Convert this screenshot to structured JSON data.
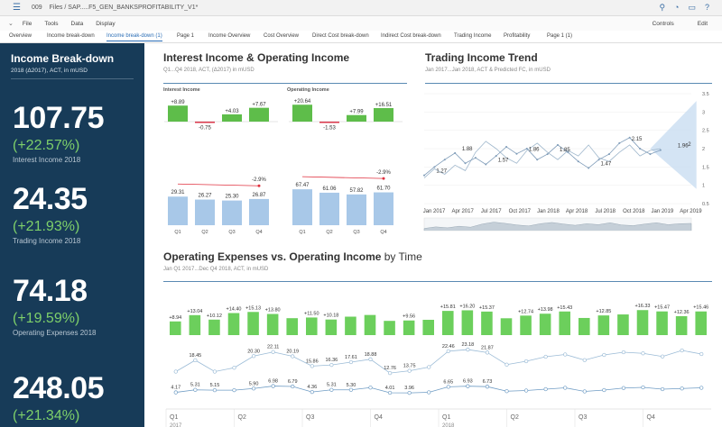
{
  "topbar": {
    "menu_icon": "hamburger-icon",
    "number": "009",
    "path": "Files  /  SAP.....F5_GEN_BANKSPROFITABILITY_V1*"
  },
  "menubar": {
    "items": [
      "File",
      "Tools",
      "Data",
      "Display"
    ],
    "controls": "Controls",
    "edit": "Edit"
  },
  "tabs": [
    "Overview",
    "Income break-down",
    "Income break-down (1)",
    "Page 1",
    "Income Overview",
    "Cost Overview",
    "Direct Cost break-down",
    "Indirect Cost break-down",
    "Trading Income",
    "Profitability",
    "Page 1 (1)"
  ],
  "active_tab": "Income break-down (1)",
  "sidebar": {
    "title": "Income Break-down",
    "subtitle": "2018 (Δ2017), ACT, in mUSD",
    "kpis": [
      {
        "value": "107.75",
        "pct": "(+22.57%)",
        "label": "Interest Income 2018"
      },
      {
        "value": "24.35",
        "pct": "(+21.93%)",
        "label": "Trading Income 2018"
      },
      {
        "value": "74.18",
        "pct": "(+19.59%)",
        "label": "Operating Expenses 2018"
      },
      {
        "value": "248.05",
        "pct": "(+21.34%)",
        "label": ""
      }
    ]
  },
  "panel1": {
    "title": "Interest Income & Operating Income",
    "subtitle": "Q1...Q4 2018, ACT, (Δ2017) in mUSD",
    "left_label": "Interest Income",
    "right_label": "Operating Income"
  },
  "panel2": {
    "title": "Trading Income Trend",
    "subtitle": "Jan 2017...Jan 2018, ACT & Predicted FC, in mUSD"
  },
  "panel3": {
    "title": "Operating Expenses vs. Operating Income",
    "title_suffix": " by Time",
    "subtitle": "Jan Q1 2017...Dec Q4 2018, ACT, in mUSD"
  },
  "chart_data": [
    {
      "type": "bar",
      "title": "Interest Income",
      "categories": [
        "Q1",
        "Q2",
        "Q3",
        "Q4"
      ],
      "values": [
        29.31,
        26.27,
        25.3,
        26.87
      ],
      "delta_values": [
        8.89,
        -0.75,
        4.03,
        7.67
      ],
      "delta_labels": [
        "+8.89",
        "-0.75",
        "+4.03",
        "+7.67"
      ],
      "annotation": "-2.9%"
    },
    {
      "type": "bar",
      "title": "Operating Income",
      "categories": [
        "Q1",
        "Q2",
        "Q3",
        "Q4"
      ],
      "values": [
        67.47,
        61.06,
        57.82,
        61.7
      ],
      "delta_values": [
        20.64,
        -1.53,
        7.99,
        16.51
      ],
      "delta_labels": [
        "+20.64",
        "-1.53",
        "+7.99",
        "+16.51"
      ],
      "annotation": "-2.9%"
    },
    {
      "type": "line",
      "title": "Trading Income Trend",
      "x_ticks": [
        "Jan 2017",
        "Apr 2017",
        "Jul 2017",
        "Oct 2017",
        "Jan 2018",
        "Apr 2018",
        "Jul 2018",
        "Oct 2018",
        "Jan 2019",
        "Apr 2019"
      ],
      "ylim": [
        0.5,
        3.5
      ],
      "y_ticks": [
        "3.5",
        "3",
        "2.5",
        "2",
        "1.5",
        "1",
        "0.5"
      ],
      "labeled_points": [
        {
          "x": 1,
          "y": 1.27,
          "label": "1.27"
        },
        {
          "x": 3.5,
          "y": 1.88,
          "label": "1.88"
        },
        {
          "x": 7,
          "y": 1.57,
          "label": "1.57"
        },
        {
          "x": 10,
          "y": 1.86,
          "label": "1.86"
        },
        {
          "x": 13,
          "y": 1.85,
          "label": "1.85"
        },
        {
          "x": 17,
          "y": 1.47,
          "label": "1.47"
        },
        {
          "x": 20,
          "y": 2.15,
          "label": "2.15"
        },
        {
          "x": 24.5,
          "y": 1.96,
          "label": "1.96"
        },
        {
          "x": 25.5,
          "y": 2,
          "label": "2"
        }
      ],
      "series_a": [
        1.27,
        1.5,
        1.7,
        1.88,
        1.6,
        1.75,
        1.57,
        1.8,
        2.05,
        1.86,
        2.0,
        1.7,
        1.85,
        2.1,
        1.9,
        1.65,
        1.47,
        1.7,
        1.85,
        2.15,
        2.3,
        2.0,
        1.85,
        1.96
      ],
      "series_b": [
        1.2,
        1.45,
        1.3,
        1.55,
        1.4,
        1.9,
        2.2,
        2.0,
        1.75,
        1.6,
        1.95,
        2.15,
        1.9,
        1.7,
        1.95,
        1.8,
        2.1,
        1.75,
        1.65,
        1.9,
        2.1,
        1.8,
        1.95,
        2.0
      ],
      "forecast_band": {
        "x_start": 22,
        "x_end": 26.5
      }
    },
    {
      "type": "bar",
      "title": "Operating Income by Time",
      "quarters": [
        "Q1",
        "Q2",
        "Q3",
        "Q4",
        "Q1",
        "Q2",
        "Q3",
        "Q4"
      ],
      "years": [
        "2017",
        "2018"
      ],
      "values": [
        8.94,
        13.04,
        10.12,
        14.4,
        15.13,
        13.8,
        11.06,
        11.5,
        10.18,
        12.05,
        13.15,
        9.3,
        9.56,
        10.0,
        15.81,
        16.2,
        15.37,
        11.0,
        12.74,
        13.98,
        15.43,
        11.2,
        12.85,
        13.5,
        16.33,
        15.47,
        12.36,
        15.46
      ],
      "value_labels": [
        "+8.94",
        "+13.04",
        "+10.12",
        "+14.40",
        "+15.13",
        "+13.80",
        "",
        "+11.50",
        "+10.18",
        "",
        "",
        "",
        "+9.56",
        "",
        "+15.81",
        "+16.20",
        "+15.37",
        "",
        "+12.74",
        "+13.98",
        "+15.43",
        "",
        "+12.85",
        "",
        "+16.33",
        "+15.47",
        "+12.36",
        "+15.46"
      ]
    },
    {
      "type": "line",
      "title": "Operating Expenses by Time",
      "series": [
        {
          "values": [
            13.4,
            18.45,
            13.4,
            15.1,
            20.3,
            22.11,
            20.19,
            15.86,
            16.36,
            17.61,
            18.88,
            12.76,
            13.75,
            15.4,
            22.46,
            23.18,
            21.87,
            16.5,
            18.0,
            20.0,
            21.0,
            18.5,
            20.8,
            22.0,
            21.5,
            20.1,
            22.8,
            21.2
          ],
          "labels": [
            "",
            "18.45",
            "",
            "",
            "20.30",
            "22.11",
            "20.19",
            "15.86",
            "16.36",
            "17.61",
            "18.88",
            "12.76",
            "13.75",
            "",
            "22.46",
            "23.18",
            "21.87",
            "",
            "",
            "",
            "",
            "",
            "",
            "",
            "",
            "",
            "",
            ""
          ]
        },
        {
          "values": [
            4.17,
            5.31,
            5.15,
            5.16,
            5.9,
            6.98,
            6.79,
            4.36,
            5.31,
            5.3,
            6.3,
            4.01,
            3.96,
            4.2,
            6.65,
            6.93,
            6.73,
            4.7,
            5.0,
            5.6,
            6.2,
            4.6,
            5.2,
            6.1,
            6.4,
            5.6,
            5.9,
            6.2
          ],
          "labels": [
            "4.17",
            "5.31",
            "5.15",
            "",
            "5.90",
            "6.98",
            "6.79",
            "4.36",
            "5.31",
            "5.30",
            "",
            "4.01",
            "3.96",
            "",
            "6.65",
            "6.93",
            "6.73",
            "",
            "",
            "",
            "",
            "",
            "",
            "",
            "",
            "",
            "",
            ""
          ]
        }
      ]
    }
  ]
}
